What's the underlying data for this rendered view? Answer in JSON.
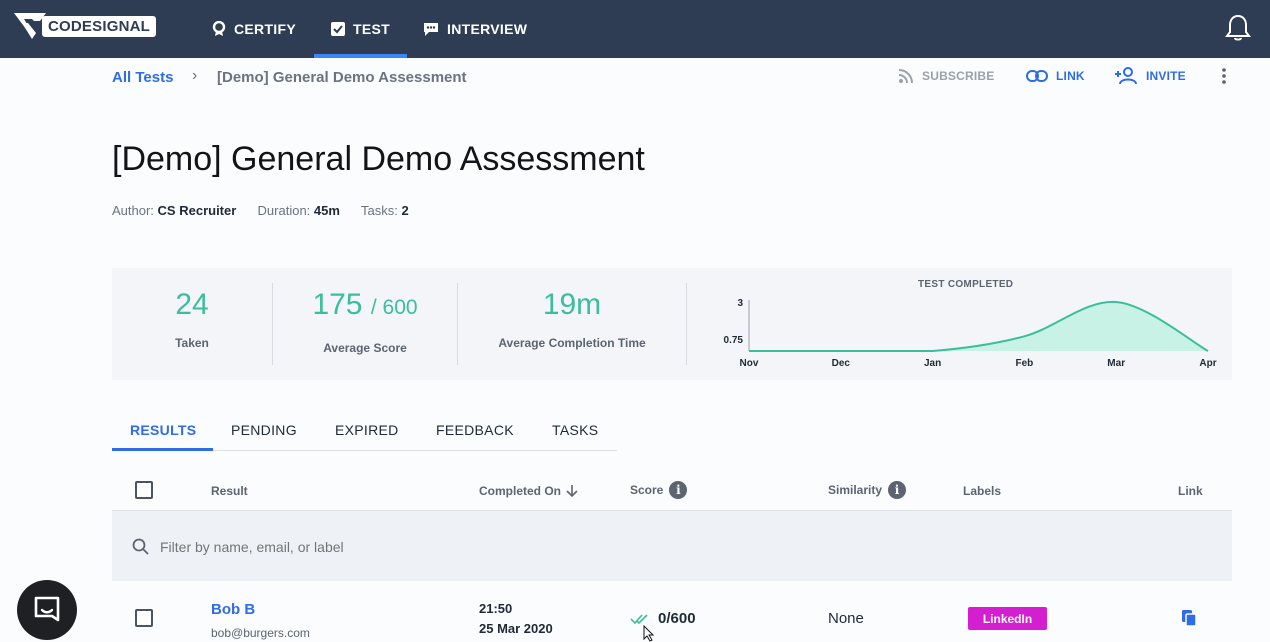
{
  "nav": {
    "logo_text": "CODESIGNAL",
    "items": [
      {
        "label": "CERTIFY",
        "icon": "badge-icon"
      },
      {
        "label": "TEST",
        "icon": "checkbox-icon",
        "active": true
      },
      {
        "label": "INTERVIEW",
        "icon": "chat-bubble-icon"
      }
    ],
    "notifications_icon": "bell-icon",
    "accent": "#3a86ff",
    "background": "#2e3d54"
  },
  "breadcrumb": {
    "root": "All Tests",
    "separator": "›",
    "current": "[Demo] General Demo Assessment"
  },
  "actions": {
    "subscribe": "SUBSCRIBE",
    "link": "LINK",
    "invite": "INVITE"
  },
  "test": {
    "title": "[Demo] General Demo Assessment",
    "author_label": "Author:",
    "author": "CS Recruiter",
    "duration_label": "Duration:",
    "duration": "45m",
    "tasks_label": "Tasks:",
    "tasks": "2"
  },
  "stats": {
    "taken_value": "24",
    "taken_label": "Taken",
    "score_value": "175",
    "score_max": "/ 600",
    "score_label": "Average Score",
    "time_value": "19m",
    "time_label": "Average Completion Time",
    "accent": "#3bbf9a"
  },
  "chart_data": {
    "type": "area",
    "title": "TEST COMPLETED",
    "categories": [
      "Nov",
      "Dec",
      "Jan",
      "Feb",
      "Mar",
      "Apr"
    ],
    "values": [
      0,
      0,
      0,
      0.9,
      3,
      0
    ],
    "y_ticks": [
      "3",
      "0.75"
    ],
    "ylim": [
      0,
      3
    ],
    "grid": false,
    "fill_color": "#c9f2e6",
    "line_color": "#3bbf9a"
  },
  "tabs": [
    {
      "label": "RESULTS",
      "active": true
    },
    {
      "label": "PENDING"
    },
    {
      "label": "EXPIRED"
    },
    {
      "label": "FEEDBACK"
    },
    {
      "label": "TASKS"
    }
  ],
  "table": {
    "columns": {
      "result": "Result",
      "completed_on": "Completed On",
      "score": "Score",
      "similarity": "Similarity",
      "labels": "Labels",
      "link": "Link"
    },
    "filter_placeholder": "Filter by name, email, or label",
    "rows": [
      {
        "name": "Bob B",
        "email": "bob@burgers.com",
        "time": "21:50",
        "date": "25 Mar 2020",
        "score": "0/600",
        "similarity": "None",
        "label": "LinkedIn",
        "label_color": "#d31fd0"
      }
    ]
  }
}
